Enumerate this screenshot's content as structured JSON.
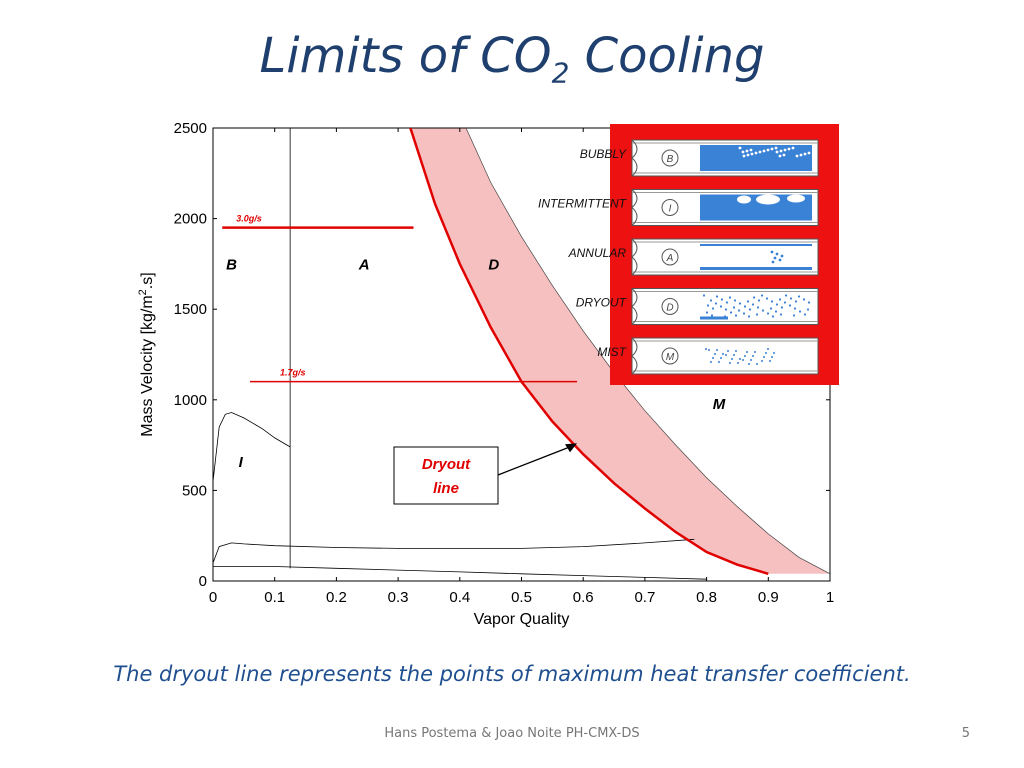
{
  "slide": {
    "title_main": "Limits of CO",
    "title_sub": "2",
    "title_tail": " Cooling",
    "caption": "The dryout line represents the points of maximum heat transfer coefficient.",
    "footer": "Hans Postema & Joao Noite  PH-CMX-DS",
    "page_number": "5"
  },
  "chart_data": {
    "type": "line",
    "xlabel": "Vapor Quality",
    "ylabel": "Mass Velocity [kg/m",
    "ylabel_sup": "2",
    "ylabel_tail": ".s]",
    "xlim": [
      0,
      1
    ],
    "ylim": [
      0,
      2500
    ],
    "x_ticks": [
      "0",
      "0.1",
      "0.2",
      "0.3",
      "0.4",
      "0.5",
      "0.6",
      "0.7",
      "0.8",
      "0.9",
      "1"
    ],
    "y_ticks": [
      "0",
      "500",
      "1000",
      "1500",
      "2000",
      "2500"
    ],
    "grid": false,
    "colors": {
      "dryout": "#e00000",
      "shade": "#f7c0c0",
      "flow_lines": "#000000",
      "accent": "#1f3f6e"
    },
    "dryout_line": {
      "x": [
        0.32,
        0.36,
        0.4,
        0.45,
        0.5,
        0.55,
        0.6,
        0.65,
        0.7,
        0.75,
        0.8,
        0.85,
        0.9
      ],
      "y": [
        2500,
        2080,
        1750,
        1400,
        1100,
        880,
        700,
        540,
        400,
        270,
        160,
        90,
        40
      ]
    },
    "mist_boundary": {
      "x": [
        0.41,
        0.45,
        0.5,
        0.55,
        0.6,
        0.65,
        0.7,
        0.75,
        0.8,
        0.85,
        0.9,
        0.95,
        1.0
      ],
      "y": [
        2500,
        2200,
        1900,
        1630,
        1380,
        1150,
        940,
        750,
        570,
        410,
        260,
        130,
        40
      ]
    },
    "intermittent_curve": {
      "x": [
        0.0,
        0.005,
        0.01,
        0.02,
        0.03,
        0.05,
        0.08,
        0.1,
        0.125
      ],
      "y": [
        550,
        700,
        850,
        920,
        930,
        900,
        840,
        790,
        740
      ]
    },
    "bubbly_boundary_x": 0.125,
    "stratified_upper": {
      "x": [
        0.0,
        0.01,
        0.03,
        0.05,
        0.1,
        0.2,
        0.3,
        0.4,
        0.5,
        0.6,
        0.7,
        0.78
      ],
      "y": [
        100,
        190,
        210,
        205,
        195,
        185,
        180,
        180,
        180,
        190,
        210,
        230
      ]
    },
    "stratified_lower": {
      "x": [
        0.0,
        0.1,
        0.2,
        0.3,
        0.4,
        0.5,
        0.6,
        0.7,
        0.8
      ],
      "y": [
        80,
        80,
        70,
        60,
        50,
        40,
        30,
        20,
        10
      ]
    },
    "flow_limits": [
      {
        "label": "3.0g/s",
        "y": 1950,
        "x_start": 0.015,
        "x_end": 0.325
      },
      {
        "label": "1.7g/s",
        "y": 1100,
        "x_start": 0.06,
        "x_end": 0.59
      }
    ],
    "region_labels": [
      {
        "text": "B",
        "x": 0.03,
        "y": 1720
      },
      {
        "text": "A",
        "x": 0.245,
        "y": 1720
      },
      {
        "text": "D",
        "x": 0.455,
        "y": 1720
      },
      {
        "text": "I",
        "x": 0.045,
        "y": 630
      },
      {
        "text": "M",
        "x": 0.82,
        "y": 950
      }
    ],
    "annotation": {
      "text": "Dryout line",
      "line1": "Dryout",
      "line2": "line",
      "arrow_to": {
        "x": 0.59,
        "y": 760
      }
    }
  },
  "legend": {
    "items": [
      {
        "label": "BUBBLY",
        "letter": "B",
        "pattern": "bubbly"
      },
      {
        "label": "INTERMITTENT",
        "letter": "I",
        "pattern": "intermittent"
      },
      {
        "label": "ANNULAR",
        "letter": "A",
        "pattern": "annular"
      },
      {
        "label": "DRYOUT",
        "letter": "D",
        "pattern": "dryout"
      },
      {
        "label": "MIST",
        "letter": "M",
        "pattern": "mist"
      }
    ],
    "frame_color": "#ee1111",
    "fluid_color": "#3a82d6"
  }
}
